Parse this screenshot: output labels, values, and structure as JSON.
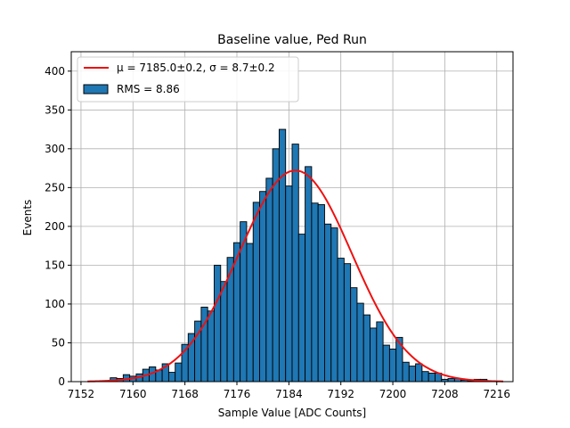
{
  "chart_data": {
    "type": "bar",
    "title": "Baseline value, Ped Run",
    "xlabel": "Sample Value [ADC Counts]",
    "ylabel": "Events",
    "xlim": [
      7150.5,
      7218.5
    ],
    "ylim": [
      0,
      425
    ],
    "xticks": [
      7152,
      7160,
      7168,
      7176,
      7184,
      7192,
      7200,
      7208,
      7216
    ],
    "yticks": [
      0,
      50,
      100,
      150,
      200,
      250,
      300,
      350,
      400
    ],
    "grid": true,
    "legend_position": "top-left",
    "bin_width": 1,
    "colors": {
      "bars": "#1f77b4",
      "bar_edge": "#000000",
      "fit": "#ee1111",
      "grid": "#b0b0b0"
    },
    "histogram": {
      "name": "RMS = 8.86",
      "x": [
        7157,
        7158,
        7159,
        7160,
        7161,
        7162,
        7163,
        7164,
        7165,
        7166,
        7167,
        7168,
        7169,
        7170,
        7171,
        7172,
        7173,
        7174,
        7175,
        7176,
        7177,
        7178,
        7179,
        7180,
        7181,
        7182,
        7183,
        7184,
        7185,
        7186,
        7187,
        7188,
        7189,
        7190,
        7191,
        7192,
        7193,
        7194,
        7195,
        7196,
        7197,
        7198,
        7199,
        7200,
        7201,
        7202,
        7203,
        7204,
        7205,
        7206,
        7207,
        7208,
        7209,
        7210,
        7211,
        7212,
        7213,
        7214,
        7215
      ],
      "values": [
        5,
        4,
        9,
        7,
        10,
        16,
        19,
        15,
        23,
        12,
        24,
        48,
        62,
        78,
        96,
        91,
        150,
        129,
        160,
        179,
        206,
        178,
        231,
        245,
        262,
        300,
        325,
        252,
        306,
        190,
        277,
        230,
        228,
        203,
        198,
        159,
        152,
        121,
        101,
        86,
        69,
        77,
        47,
        42,
        57,
        25,
        20,
        23,
        13,
        11,
        11,
        3,
        4,
        4,
        2,
        1,
        3,
        3,
        1
      ]
    },
    "fit": {
      "type": "gaussian",
      "name": "μ = 7185.0±0.2, σ = 8.7±0.2",
      "mu": 7185.0,
      "sigma": 8.7,
      "amplitude": 272,
      "x_range": [
        7153,
        7217
      ]
    }
  }
}
